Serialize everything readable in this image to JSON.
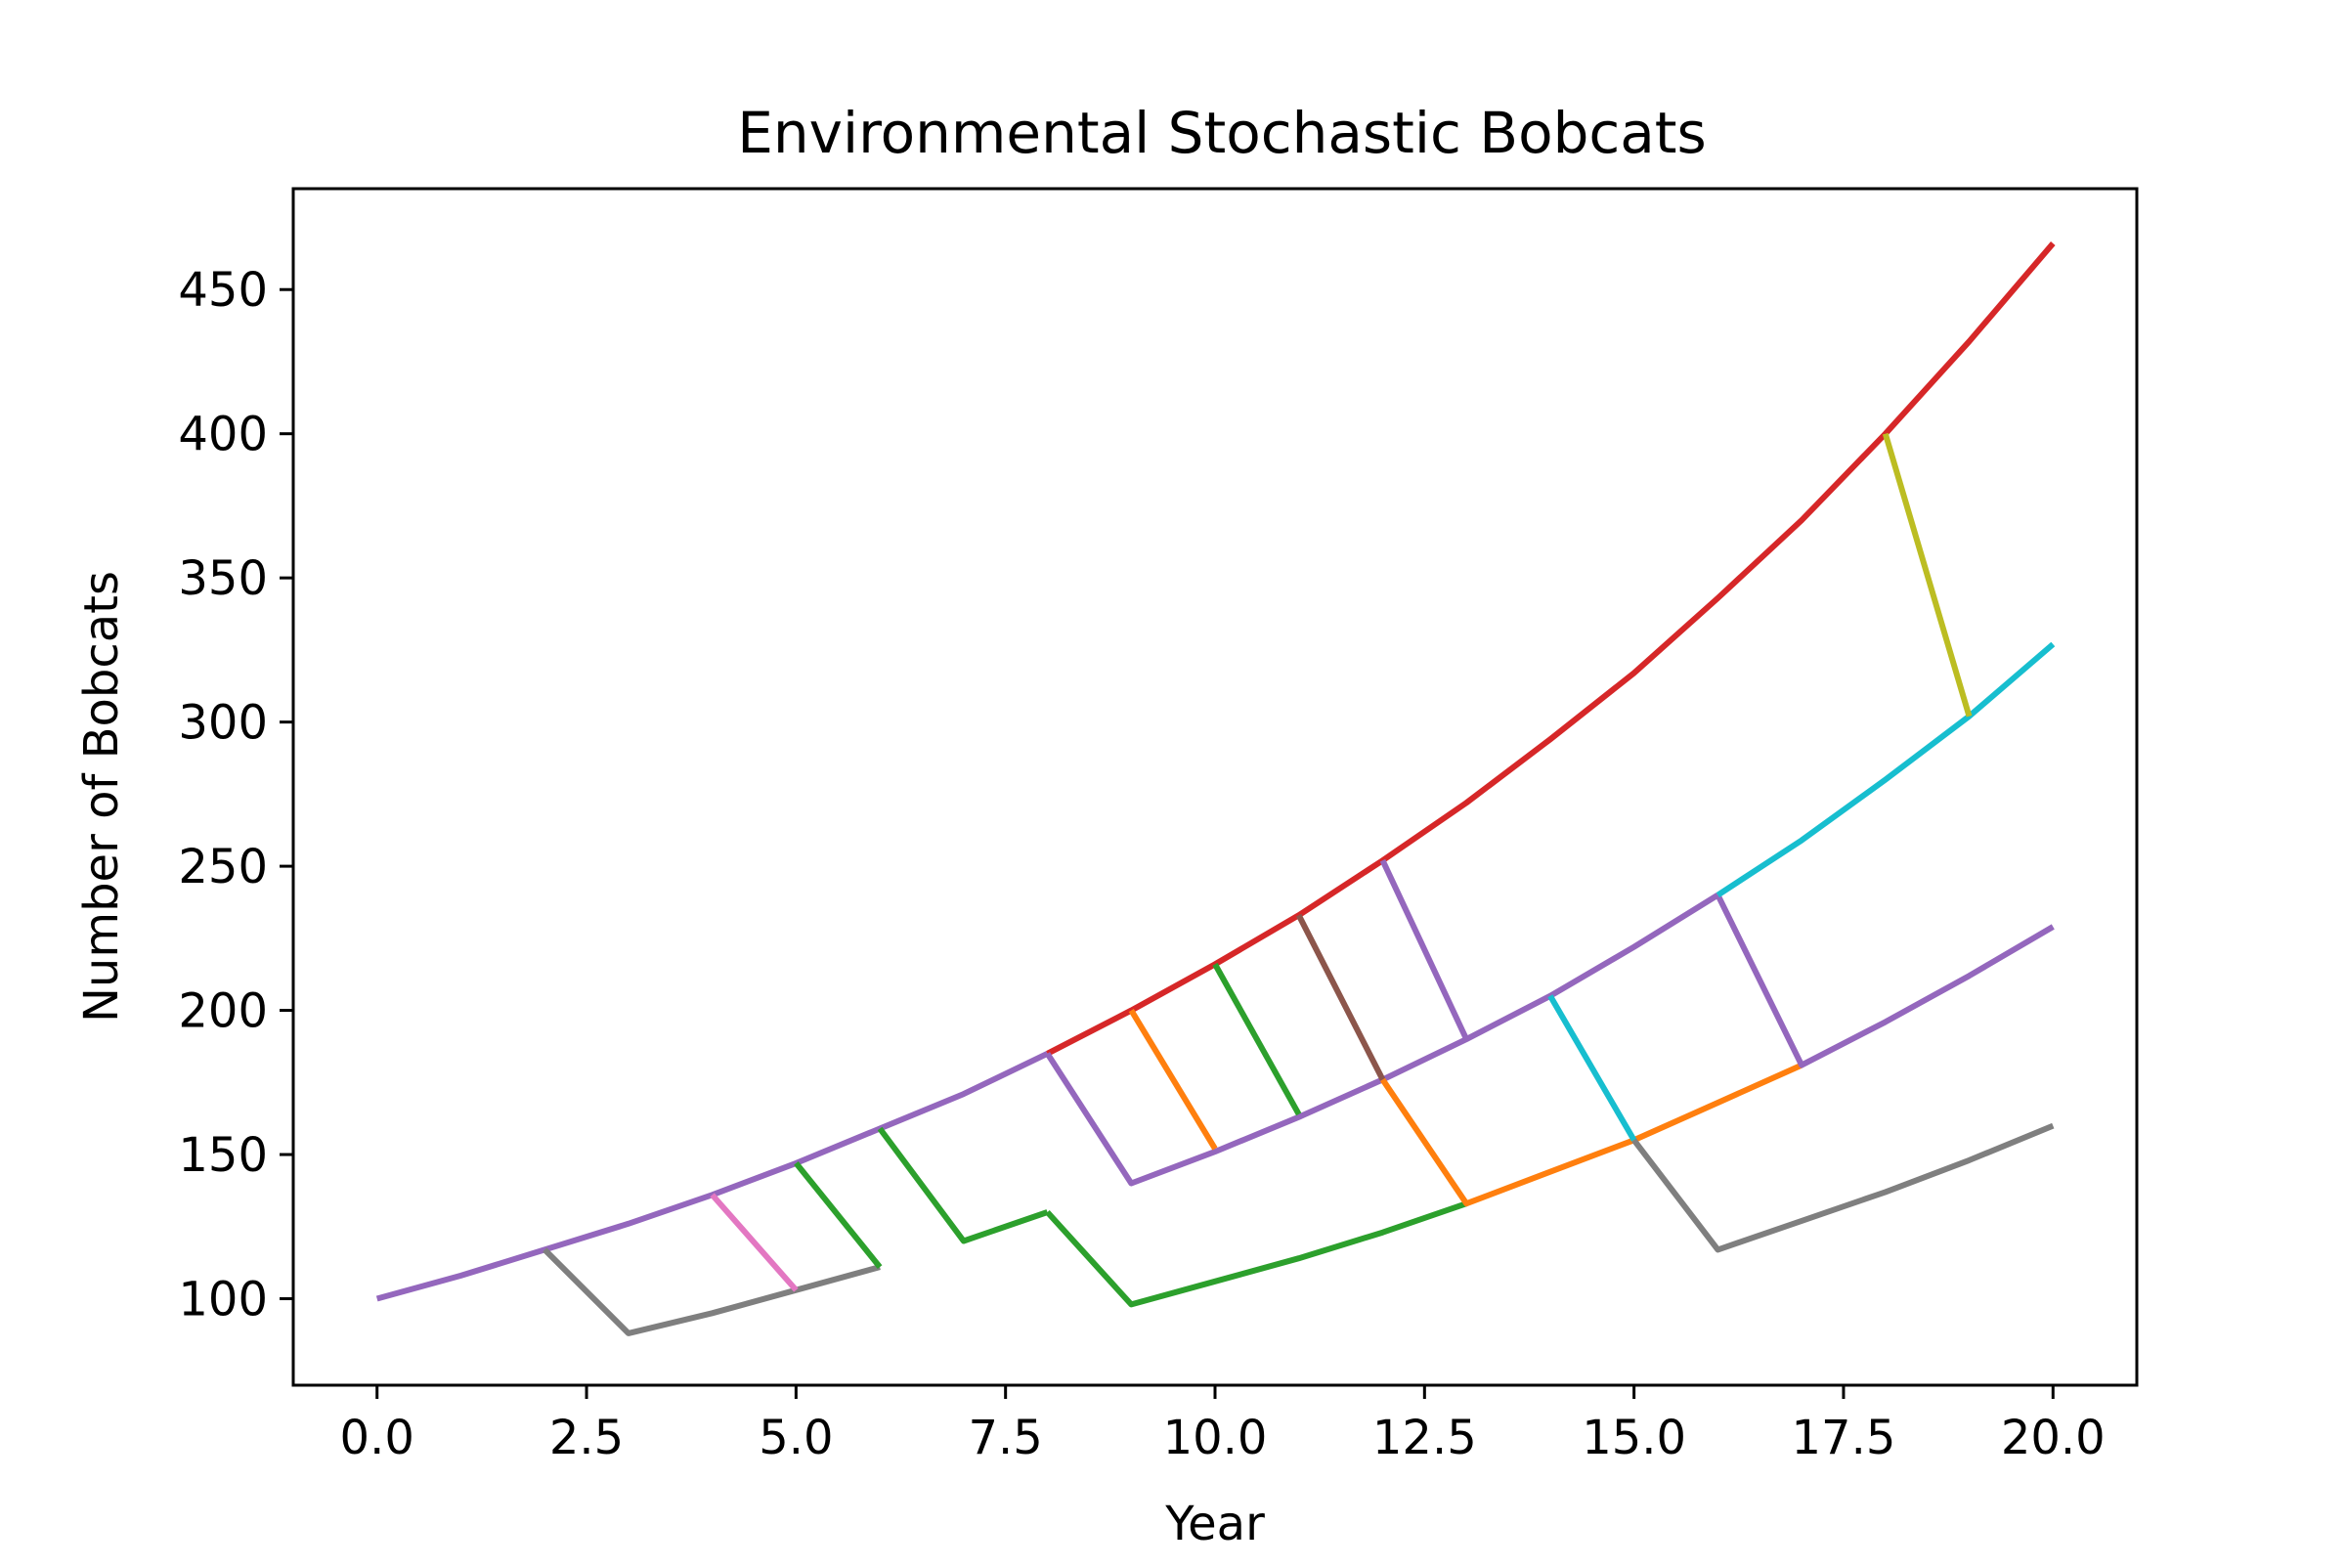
{
  "chart_data": {
    "type": "line",
    "title": "Environmental Stochastic Bobcats",
    "xlabel": "Year",
    "ylabel": "Number of Bobcats",
    "xlim": [
      -1,
      21
    ],
    "ylim": [
      70,
      485
    ],
    "grid": false,
    "legend": "none",
    "x_ticks": [
      0.0,
      2.5,
      5.0,
      7.5,
      10.0,
      12.5,
      15.0,
      17.5,
      20.0
    ],
    "x_tick_labels": [
      "0.0",
      "2.5",
      "5.0",
      "7.5",
      "10.0",
      "12.5",
      "15.0",
      "17.5",
      "20.0"
    ],
    "y_ticks": [
      100,
      150,
      200,
      250,
      300,
      350,
      400,
      450
    ],
    "y_tick_labels": [
      "100",
      "150",
      "200",
      "250",
      "300",
      "350",
      "400",
      "450"
    ],
    "series": [
      {
        "color": "#d62728",
        "x": [
          8,
          9,
          10,
          11,
          12,
          13,
          14,
          15,
          16,
          17,
          18,
          19,
          20
        ],
        "y": [
          185,
          200,
          216,
          233,
          252,
          272,
          294,
          317,
          343,
          370,
          400,
          432,
          466
        ]
      },
      {
        "color": "#9467bd",
        "x": [
          0,
          1,
          2,
          3,
          4,
          5,
          6,
          7,
          8
        ],
        "y": [
          100,
          108,
          117,
          126,
          136,
          147,
          159,
          171,
          185
        ]
      },
      {
        "color": "#7f7f7f",
        "x": [
          2,
          3,
          4,
          5,
          6
        ],
        "y": [
          117,
          88,
          95,
          103,
          111
        ]
      },
      {
        "color": "#e377c2",
        "x": [
          4,
          5
        ],
        "y": [
          136,
          103
        ]
      },
      {
        "color": "#2ca02c",
        "x": [
          5,
          6
        ],
        "y": [
          147,
          111
        ]
      },
      {
        "color": "#2ca02c",
        "x": [
          6,
          7,
          8
        ],
        "y": [
          159,
          120,
          130
        ]
      },
      {
        "color": "#2ca02c",
        "x": [
          8,
          9,
          10,
          11,
          12,
          13
        ],
        "y": [
          130,
          98,
          106,
          114,
          123,
          133
        ]
      },
      {
        "color": "#9467bd",
        "x": [
          8,
          9,
          10,
          11,
          12,
          13,
          14,
          15,
          16
        ],
        "y": [
          185,
          140,
          151,
          163,
          176,
          190,
          205,
          222,
          240
        ]
      },
      {
        "color": "#ff7f0e",
        "x": [
          9,
          10
        ],
        "y": [
          200,
          152
        ]
      },
      {
        "color": "#2ca02c",
        "x": [
          10,
          11
        ],
        "y": [
          216,
          164
        ]
      },
      {
        "color": "#8c564b",
        "x": [
          11,
          12
        ],
        "y": [
          233,
          176
        ]
      },
      {
        "color": "#ff7f0e",
        "x": [
          12,
          13,
          14,
          15,
          16,
          17
        ],
        "y": [
          176,
          133,
          144,
          155,
          168,
          181
        ]
      },
      {
        "color": "#9467bd",
        "x": [
          12,
          13
        ],
        "y": [
          252,
          190
        ]
      },
      {
        "color": "#17becf",
        "x": [
          14,
          15
        ],
        "y": [
          205,
          155
        ]
      },
      {
        "color": "#7f7f7f",
        "x": [
          15,
          16,
          17,
          18,
          19,
          20
        ],
        "y": [
          155,
          117,
          127,
          137,
          148,
          160
        ]
      },
      {
        "color": "#9467bd",
        "x": [
          16,
          17,
          18,
          19,
          20
        ],
        "y": [
          240,
          181,
          196,
          212,
          229
        ]
      },
      {
        "color": "#17becf",
        "x": [
          16,
          17,
          18,
          19,
          20
        ],
        "y": [
          240,
          259,
          280,
          302,
          327
        ]
      },
      {
        "color": "#bcbd22",
        "x": [
          18,
          19
        ],
        "y": [
          400,
          302
        ]
      }
    ]
  }
}
